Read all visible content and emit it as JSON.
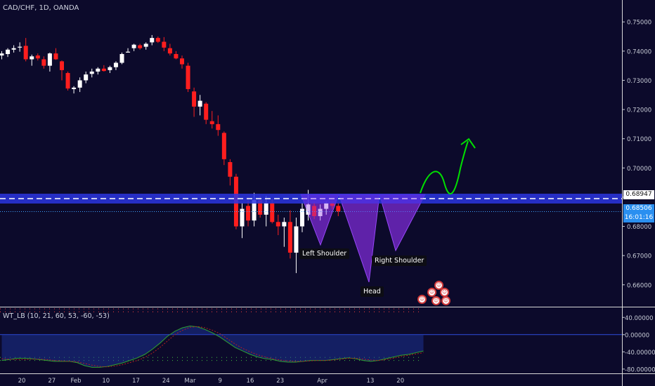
{
  "header": {
    "symbol_title": "CAD/CHF, 1D, OANDA"
  },
  "indicator": {
    "title": "WT_LB (10, 21, 60, 53, -60, -53)"
  },
  "price_tags": {
    "neckline": "0.68947",
    "current": "0.68506",
    "countdown": "16:01:16"
  },
  "annotations": {
    "left_shoulder": "Left Shoulder",
    "head": "Head",
    "right_shoulder": "Right Shoulder"
  },
  "colors": {
    "background": "#0c0a2b",
    "up": "#ffffff",
    "down": "#ff1e1e",
    "pattern": "#8a2be2",
    "neckline": "#2b35e0",
    "arrow": "#00e000",
    "axis_text": "#c8ccd6"
  },
  "chart_data": {
    "type": "candlestick",
    "title": "CAD/CHF, 1D, OANDA",
    "ylim": [
      0.6525,
      0.7575
    ],
    "y_ticks": [
      0.66,
      0.67,
      0.68,
      0.69,
      0.7,
      0.71,
      0.72,
      0.73,
      0.74,
      0.75
    ],
    "y_tick_labels": [
      "0.66000",
      "0.67000",
      "0.68000",
      "",
      "0.70000",
      "0.71000",
      "0.72000",
      "0.73000",
      "0.74000",
      "0.75000"
    ],
    "x_tick_labels": [
      {
        "label": "20",
        "bar": 1
      },
      {
        "label": "27",
        "bar": 6
      },
      {
        "label": "Feb",
        "bar": 10
      },
      {
        "label": "10",
        "bar": 15
      },
      {
        "label": "17",
        "bar": 20
      },
      {
        "label": "24",
        "bar": 25
      },
      {
        "label": "Mar",
        "bar": 29
      },
      {
        "label": "9",
        "bar": 34
      },
      {
        "label": "16",
        "bar": 39
      },
      {
        "label": "23",
        "bar": 44
      },
      {
        "label": "Apr",
        "bar": 51
      },
      {
        "label": "13",
        "bar": 59
      },
      {
        "label": "20",
        "bar": 64
      }
    ],
    "neckline": 0.6895,
    "current_price": 0.68506,
    "candles": [
      [
        0.7385,
        0.74,
        0.7372,
        0.7392
      ],
      [
        0.739,
        0.741,
        0.738,
        0.7405
      ],
      [
        0.7405,
        0.742,
        0.7395,
        0.741
      ],
      [
        0.7412,
        0.743,
        0.7398,
        0.7415
      ],
      [
        0.7418,
        0.7445,
        0.7365,
        0.7372
      ],
      [
        0.7372,
        0.7388,
        0.735,
        0.7382
      ],
      [
        0.7385,
        0.7392,
        0.7368,
        0.7375
      ],
      [
        0.7372,
        0.7382,
        0.734,
        0.735
      ],
      [
        0.735,
        0.7395,
        0.733,
        0.7392
      ],
      [
        0.7392,
        0.741,
        0.737,
        0.7372
      ],
      [
        0.7365,
        0.7368,
        0.73,
        0.7335
      ],
      [
        0.7325,
        0.733,
        0.7265,
        0.7272
      ],
      [
        0.727,
        0.728,
        0.7255,
        0.7275
      ],
      [
        0.7275,
        0.731,
        0.726,
        0.73
      ],
      [
        0.73,
        0.733,
        0.729,
        0.732
      ],
      [
        0.7322,
        0.734,
        0.731,
        0.733
      ],
      [
        0.733,
        0.7345,
        0.732,
        0.734
      ],
      [
        0.734,
        0.7352,
        0.733,
        0.7332
      ],
      [
        0.7335,
        0.735,
        0.7325,
        0.7345
      ],
      [
        0.7345,
        0.7365,
        0.7335,
        0.736
      ],
      [
        0.736,
        0.7395,
        0.7355,
        0.739
      ],
      [
        0.7395,
        0.741,
        0.7395,
        0.7398
      ],
      [
        0.741,
        0.7425,
        0.74,
        0.7422
      ],
      [
        0.742,
        0.7425,
        0.7405,
        0.741
      ],
      [
        0.7415,
        0.743,
        0.7405,
        0.7425
      ],
      [
        0.743,
        0.7455,
        0.742,
        0.7445
      ],
      [
        0.7445,
        0.745,
        0.7428,
        0.7432
      ],
      [
        0.7432,
        0.7448,
        0.74,
        0.7412
      ],
      [
        0.741,
        0.7425,
        0.7385,
        0.7392
      ],
      [
        0.739,
        0.74,
        0.7372,
        0.7375
      ],
      [
        0.7375,
        0.7385,
        0.734,
        0.7355
      ],
      [
        0.735,
        0.736,
        0.726,
        0.727
      ],
      [
        0.7262,
        0.7275,
        0.7175,
        0.721
      ],
      [
        0.721,
        0.725,
        0.718,
        0.723
      ],
      [
        0.722,
        0.7225,
        0.715,
        0.7165
      ],
      [
        0.716,
        0.7195,
        0.7135,
        0.715
      ],
      [
        0.715,
        0.718,
        0.711,
        0.713
      ],
      [
        0.712,
        0.7125,
        0.701,
        0.703
      ],
      [
        0.702,
        0.703,
        0.694,
        0.697
      ],
      [
        0.697,
        0.698,
        0.679,
        0.68
      ],
      [
        0.68,
        0.688,
        0.676,
        0.686
      ],
      [
        0.687,
        0.69,
        0.68,
        0.682
      ],
      [
        0.682,
        0.6915,
        0.68,
        0.689
      ],
      [
        0.689,
        0.6905,
        0.683,
        0.684
      ],
      [
        0.684,
        0.6905,
        0.68,
        0.688
      ],
      [
        0.688,
        0.6895,
        0.681,
        0.6815
      ],
      [
        0.6815,
        0.684,
        0.677,
        0.68
      ],
      [
        0.68,
        0.683,
        0.673,
        0.6815
      ],
      [
        0.6815,
        0.6855,
        0.669,
        0.671
      ],
      [
        0.671,
        0.683,
        0.664,
        0.68
      ],
      [
        0.68,
        0.688,
        0.678,
        0.686
      ],
      [
        0.684,
        0.6925,
        0.682,
        0.6875
      ],
      [
        0.687,
        0.6885,
        0.6825,
        0.6835
      ],
      [
        0.6835,
        0.6875,
        0.682,
        0.686
      ],
      [
        0.686,
        0.6885,
        0.684,
        0.688
      ],
      [
        0.688,
        0.6895,
        0.686,
        0.687
      ],
      [
        0.687,
        0.688,
        0.6835,
        0.6851
      ]
    ],
    "indicator": {
      "name": "WT_LB",
      "ylim": [
        -90,
        60
      ],
      "y_ticks": [
        40,
        0,
        -40,
        -80
      ],
      "y_tick_labels": [
        "40.00000",
        "0.00000",
        "-40.00000",
        "-80.00000"
      ],
      "overbought": [
        53,
        60
      ],
      "oversold": [
        -53,
        -60
      ],
      "wt1": [
        -60,
        -58,
        -55,
        -55,
        -56,
        -58,
        -60,
        -62,
        -62,
        -62,
        -65,
        -72,
        -76,
        -76,
        -74,
        -70,
        -66,
        -60,
        -54,
        -46,
        -34,
        -20,
        -4,
        8,
        16,
        20,
        18,
        12,
        4,
        -6,
        -18,
        -30,
        -38,
        -46,
        -52,
        -56,
        -58,
        -62,
        -64,
        -64,
        -62,
        -60,
        -60,
        -60,
        -58,
        -56,
        -54,
        -56,
        -60,
        -62,
        -60,
        -56,
        -52,
        -48,
        -46,
        -42,
        -38
      ],
      "wt2": [
        -56,
        -57,
        -58,
        -58,
        -57,
        -57,
        -58,
        -60,
        -61,
        -62,
        -63,
        -67,
        -71,
        -74,
        -75,
        -73,
        -70,
        -65,
        -60,
        -53,
        -43,
        -30,
        -15,
        0,
        10,
        17,
        19,
        16,
        10,
        2,
        -10,
        -22,
        -32,
        -40,
        -47,
        -52,
        -56,
        -59,
        -61,
        -62,
        -62,
        -61,
        -60,
        -60,
        -59,
        -57,
        -55,
        -55,
        -57,
        -59,
        -60,
        -58,
        -55,
        -51,
        -48,
        -45,
        -42
      ]
    }
  }
}
